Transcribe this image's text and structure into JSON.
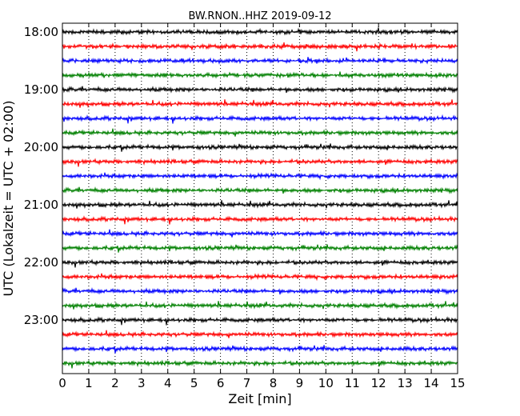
{
  "chart_data": {
    "type": "line",
    "title": "BW.RNON..HHZ 2019-09-12",
    "xlabel": "Zeit  [min]",
    "ylabel": "UTC (Lokalzeit = UTC + 02:00)",
    "xlim": [
      0,
      15
    ],
    "x_ticks": [
      "0",
      "1",
      "2",
      "3",
      "4",
      "5",
      "6",
      "7",
      "8",
      "9",
      "10",
      "11",
      "12",
      "13",
      "14",
      "15"
    ],
    "y_tick_labels": [
      "18:00",
      "19:00",
      "20:00",
      "21:00",
      "22:00",
      "23:00"
    ],
    "trace_interval_min": 15,
    "grid": "vertical dotted",
    "trace_colors": [
      "#000000",
      "#ff0000",
      "#0000ff",
      "#008000"
    ],
    "traces": [
      {
        "start": "18:00",
        "color": "#000000"
      },
      {
        "start": "18:15",
        "color": "#ff0000"
      },
      {
        "start": "18:30",
        "color": "#0000ff"
      },
      {
        "start": "18:45",
        "color": "#008000"
      },
      {
        "start": "19:00",
        "color": "#000000"
      },
      {
        "start": "19:15",
        "color": "#ff0000"
      },
      {
        "start": "19:30",
        "color": "#0000ff"
      },
      {
        "start": "19:45",
        "color": "#008000"
      },
      {
        "start": "20:00",
        "color": "#000000"
      },
      {
        "start": "20:15",
        "color": "#ff0000"
      },
      {
        "start": "20:30",
        "color": "#0000ff"
      },
      {
        "start": "20:45",
        "color": "#008000"
      },
      {
        "start": "21:00",
        "color": "#000000"
      },
      {
        "start": "21:15",
        "color": "#ff0000"
      },
      {
        "start": "21:30",
        "color": "#0000ff"
      },
      {
        "start": "21:45",
        "color": "#008000"
      },
      {
        "start": "22:00",
        "color": "#000000"
      },
      {
        "start": "22:15",
        "color": "#ff0000"
      },
      {
        "start": "22:30",
        "color": "#0000ff"
      },
      {
        "start": "22:45",
        "color": "#008000"
      },
      {
        "start": "23:00",
        "color": "#000000"
      },
      {
        "start": "23:15",
        "color": "#ff0000"
      },
      {
        "start": "23:30",
        "color": "#0000ff"
      },
      {
        "start": "23:45",
        "color": "#008000"
      }
    ]
  }
}
